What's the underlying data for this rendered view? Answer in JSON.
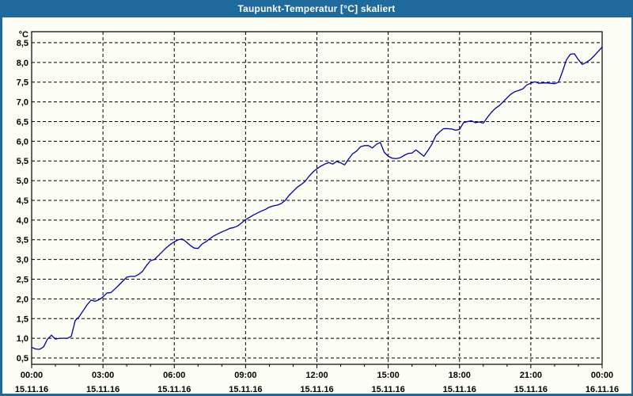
{
  "window": {
    "title": "Taupunkt-Temperatur [°C] skaliert"
  },
  "colors": {
    "titlebar_bg": "#1e6a9d",
    "titlebar_text": "#ffffff",
    "frame": "#1e6a9d",
    "content_bg": "#fcfdf4",
    "grid": "#000000",
    "axis": "#000000",
    "line": "#0000a0"
  },
  "chart_data": {
    "type": "line",
    "title": "Taupunkt-Temperatur [°C] skaliert",
    "unit_label": "°C",
    "xlabel": "",
    "ylabel": "°C",
    "grid": "dashed",
    "legend": "none",
    "ylim": [
      0.34,
      8.78
    ],
    "xlim_hours": [
      0,
      24
    ],
    "x_minor_tick_hours": 1,
    "y_ticks": [
      8.5,
      8.0,
      7.5,
      7.0,
      6.5,
      6.0,
      5.5,
      5.0,
      4.5,
      4.0,
      3.5,
      3.0,
      2.5,
      2.0,
      1.5,
      1.0,
      0.5
    ],
    "y_tick_labels": [
      "8,5",
      "8,0",
      "7,5",
      "7,0",
      "6,5",
      "6,0",
      "5,5",
      "5,0",
      "4,5",
      "4,0",
      "3,5",
      "3,0",
      "2,5",
      "2,0",
      "1,5",
      "1,0",
      "0,5"
    ],
    "x_ticks_hours": [
      0,
      3,
      6,
      9,
      12,
      15,
      18,
      21,
      24
    ],
    "x_tick_labels": [
      "00:00",
      "03:00",
      "06:00",
      "09:00",
      "12:00",
      "15:00",
      "18:00",
      "21:00",
      "00:00"
    ],
    "x_date_labels": [
      "15.11.16",
      "15.11.16",
      "15.11.16",
      "15.11.16",
      "15.11.16",
      "15.11.16",
      "15.11.16",
      "15.11.16",
      "16.11.16"
    ],
    "series": [
      {
        "name": "Taupunkt-Temperatur",
        "color": "#0000a0",
        "points_min_val": [
          [
            0,
            0.77
          ],
          [
            10,
            0.73
          ],
          [
            20,
            0.72
          ],
          [
            30,
            0.78
          ],
          [
            40,
            0.98
          ],
          [
            50,
            1.08
          ],
          [
            60,
            0.98
          ],
          [
            70,
            1.0
          ],
          [
            80,
            1.0
          ],
          [
            90,
            1.0
          ],
          [
            100,
            1.05
          ],
          [
            110,
            1.45
          ],
          [
            120,
            1.55
          ],
          [
            130,
            1.7
          ],
          [
            140,
            1.85
          ],
          [
            150,
            1.97
          ],
          [
            160,
            1.94
          ],
          [
            170,
            1.98
          ],
          [
            180,
            2.05
          ],
          [
            190,
            2.15
          ],
          [
            200,
            2.16
          ],
          [
            210,
            2.25
          ],
          [
            220,
            2.35
          ],
          [
            230,
            2.45
          ],
          [
            240,
            2.55
          ],
          [
            250,
            2.57
          ],
          [
            260,
            2.57
          ],
          [
            270,
            2.62
          ],
          [
            280,
            2.7
          ],
          [
            290,
            2.85
          ],
          [
            300,
            2.97
          ],
          [
            310,
            3.0
          ],
          [
            320,
            3.1
          ],
          [
            330,
            3.2
          ],
          [
            340,
            3.3
          ],
          [
            350,
            3.38
          ],
          [
            360,
            3.45
          ],
          [
            370,
            3.5
          ],
          [
            380,
            3.52
          ],
          [
            390,
            3.45
          ],
          [
            400,
            3.36
          ],
          [
            410,
            3.29
          ],
          [
            420,
            3.28
          ],
          [
            430,
            3.39
          ],
          [
            440,
            3.45
          ],
          [
            450,
            3.53
          ],
          [
            460,
            3.6
          ],
          [
            470,
            3.65
          ],
          [
            480,
            3.7
          ],
          [
            490,
            3.74
          ],
          [
            500,
            3.79
          ],
          [
            510,
            3.81
          ],
          [
            520,
            3.85
          ],
          [
            530,
            3.93
          ],
          [
            540,
            4.01
          ],
          [
            550,
            4.07
          ],
          [
            560,
            4.13
          ],
          [
            570,
            4.18
          ],
          [
            580,
            4.23
          ],
          [
            590,
            4.27
          ],
          [
            600,
            4.33
          ],
          [
            610,
            4.36
          ],
          [
            620,
            4.38
          ],
          [
            630,
            4.42
          ],
          [
            640,
            4.5
          ],
          [
            650,
            4.63
          ],
          [
            660,
            4.73
          ],
          [
            670,
            4.83
          ],
          [
            680,
            4.9
          ],
          [
            690,
            4.98
          ],
          [
            700,
            5.11
          ],
          [
            710,
            5.22
          ],
          [
            720,
            5.3
          ],
          [
            730,
            5.37
          ],
          [
            740,
            5.42
          ],
          [
            750,
            5.46
          ],
          [
            760,
            5.42
          ],
          [
            770,
            5.49
          ],
          [
            780,
            5.45
          ],
          [
            790,
            5.4
          ],
          [
            800,
            5.55
          ],
          [
            810,
            5.68
          ],
          [
            820,
            5.75
          ],
          [
            830,
            5.86
          ],
          [
            840,
            5.89
          ],
          [
            850,
            5.89
          ],
          [
            860,
            5.83
          ],
          [
            870,
            5.92
          ],
          [
            880,
            5.97
          ],
          [
            890,
            5.72
          ],
          [
            900,
            5.62
          ],
          [
            910,
            5.57
          ],
          [
            920,
            5.56
          ],
          [
            930,
            5.58
          ],
          [
            940,
            5.64
          ],
          [
            950,
            5.69
          ],
          [
            960,
            5.7
          ],
          [
            970,
            5.78
          ],
          [
            980,
            5.7
          ],
          [
            990,
            5.62
          ],
          [
            1000,
            5.76
          ],
          [
            1010,
            5.92
          ],
          [
            1020,
            6.14
          ],
          [
            1030,
            6.24
          ],
          [
            1040,
            6.32
          ],
          [
            1050,
            6.32
          ],
          [
            1060,
            6.31
          ],
          [
            1070,
            6.28
          ],
          [
            1080,
            6.3
          ],
          [
            1090,
            6.47
          ],
          [
            1100,
            6.5
          ],
          [
            1110,
            6.52
          ],
          [
            1120,
            6.47
          ],
          [
            1130,
            6.49
          ],
          [
            1140,
            6.46
          ],
          [
            1150,
            6.6
          ],
          [
            1160,
            6.73
          ],
          [
            1170,
            6.83
          ],
          [
            1180,
            6.9
          ],
          [
            1190,
            7.0
          ],
          [
            1200,
            7.1
          ],
          [
            1210,
            7.2
          ],
          [
            1220,
            7.26
          ],
          [
            1230,
            7.29
          ],
          [
            1240,
            7.33
          ],
          [
            1250,
            7.43
          ],
          [
            1260,
            7.47
          ],
          [
            1270,
            7.51
          ],
          [
            1280,
            7.47
          ],
          [
            1290,
            7.48
          ],
          [
            1300,
            7.48
          ],
          [
            1310,
            7.47
          ],
          [
            1320,
            7.46
          ],
          [
            1330,
            7.5
          ],
          [
            1340,
            7.77
          ],
          [
            1350,
            8.07
          ],
          [
            1360,
            8.21
          ],
          [
            1370,
            8.22
          ],
          [
            1380,
            8.07
          ],
          [
            1390,
            7.95
          ],
          [
            1400,
            8.0
          ],
          [
            1410,
            8.07
          ],
          [
            1420,
            8.17
          ],
          [
            1430,
            8.28
          ],
          [
            1440,
            8.39
          ]
        ]
      }
    ]
  }
}
